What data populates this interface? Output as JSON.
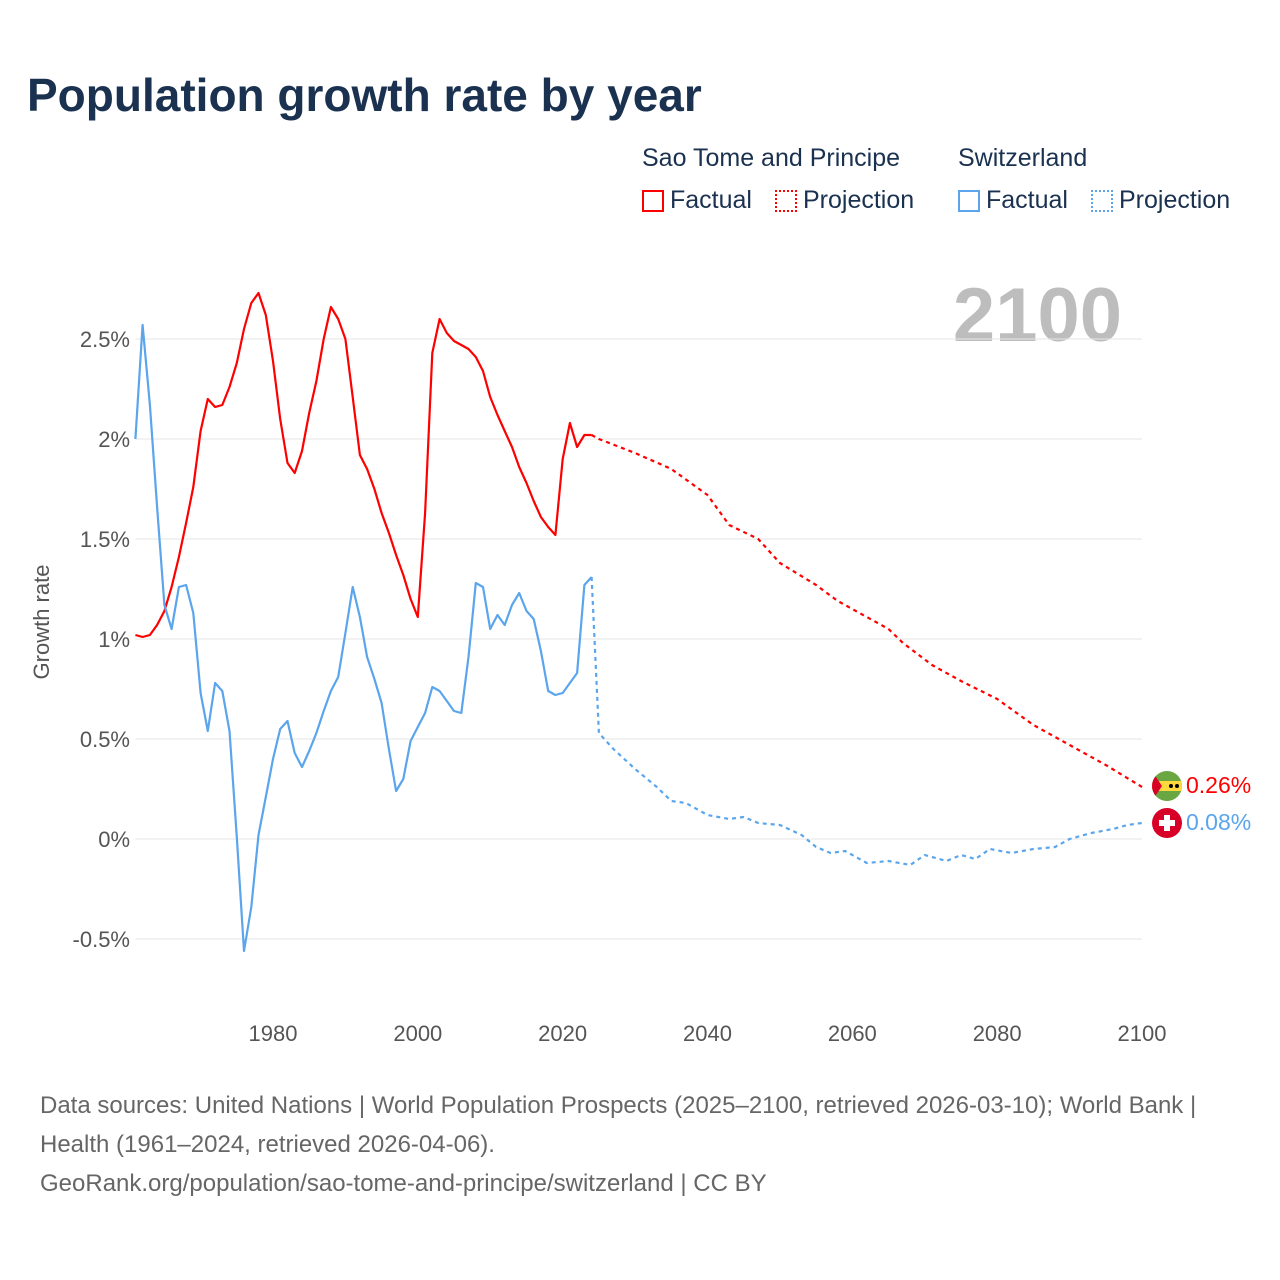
{
  "title": "Population growth rate by year",
  "legend": {
    "groups": [
      {
        "name": "Sao Tome and Principe",
        "factual": "Factual",
        "projection": "Projection",
        "color": "#ff0000"
      },
      {
        "name": "Switzerland",
        "factual": "Factual",
        "projection": "Projection",
        "color": "#5aa5ec"
      }
    ]
  },
  "current_year": "2100",
  "end_labels": {
    "stp": "0.26%",
    "che": "0.08%"
  },
  "footer": {
    "sources": "Data sources: United Nations | World Population Prospects (2025–2100, retrieved 2026-03-10); World Bank | Health (1961–2024, retrieved 2026-04-06).",
    "link": "GeoRank.org/population/sao-tome-and-principe/switzerland | CC BY"
  },
  "chart_data": {
    "type": "line",
    "title": "Population growth rate by year",
    "xlabel": "",
    "ylabel": "Growth rate",
    "xlim": [
      1961,
      2100
    ],
    "ylim": [
      -0.5,
      2.5
    ],
    "x_ticks": [
      1980,
      2000,
      2020,
      2040,
      2060,
      2080,
      2100
    ],
    "y_ticks": [
      {
        "v": -0.5,
        "label": "-0.5%"
      },
      {
        "v": 0,
        "label": "0%"
      },
      {
        "v": 0.5,
        "label": "0.5%"
      },
      {
        "v": 1,
        "label": "1%"
      },
      {
        "v": 1.5,
        "label": "1.5%"
      },
      {
        "v": 2,
        "label": "2%"
      },
      {
        "v": 2.5,
        "label": "2.5%"
      }
    ],
    "grid": true,
    "series": [
      {
        "name": "Sao Tome and Principe",
        "kind": "Factual",
        "color": "#ff0000",
        "start": 1961,
        "values": [
          1.02,
          1.01,
          1.02,
          1.07,
          1.14,
          1.26,
          1.41,
          1.58,
          1.76,
          2.04,
          2.2,
          2.16,
          2.17,
          2.26,
          2.38,
          2.55,
          2.68,
          2.73,
          2.62,
          2.39,
          2.1,
          1.88,
          1.83,
          1.94,
          2.13,
          2.29,
          2.5,
          2.66,
          2.6,
          2.5,
          2.21,
          1.92,
          1.85,
          1.75,
          1.63,
          1.53,
          1.42,
          1.32,
          1.2,
          1.11,
          1.63,
          2.43,
          2.6,
          2.53,
          2.49,
          2.47,
          2.45,
          2.41,
          2.34,
          2.21,
          2.12,
          2.04,
          1.96,
          1.86,
          1.78,
          1.69,
          1.61,
          1.56,
          1.52,
          1.9,
          2.08,
          1.96,
          2.02,
          2.02
        ]
      },
      {
        "name": "Sao Tome and Principe",
        "kind": "Projection",
        "color": "#ff0000",
        "points": [
          [
            2024,
            2.02
          ],
          [
            2025,
            2.0
          ],
          [
            2030,
            1.93
          ],
          [
            2035,
            1.85
          ],
          [
            2040,
            1.72
          ],
          [
            2043,
            1.57
          ],
          [
            2047,
            1.5
          ],
          [
            2050,
            1.38
          ],
          [
            2055,
            1.27
          ],
          [
            2058,
            1.19
          ],
          [
            2065,
            1.05
          ],
          [
            2067,
            0.98
          ],
          [
            2071,
            0.87
          ],
          [
            2075,
            0.79
          ],
          [
            2080,
            0.7
          ],
          [
            2085,
            0.57
          ],
          [
            2090,
            0.47
          ],
          [
            2095,
            0.37
          ],
          [
            2100,
            0.26
          ]
        ]
      },
      {
        "name": "Switzerland",
        "kind": "Factual",
        "color": "#5aa5ec",
        "start": 1961,
        "values": [
          2.0,
          2.57,
          2.17,
          1.66,
          1.17,
          1.05,
          1.26,
          1.27,
          1.13,
          0.73,
          0.54,
          0.78,
          0.74,
          0.54,
          0.01,
          -0.56,
          -0.34,
          0.02,
          0.21,
          0.4,
          0.55,
          0.59,
          0.43,
          0.36,
          0.44,
          0.53,
          0.64,
          0.74,
          0.81,
          1.03,
          1.26,
          1.11,
          0.91,
          0.8,
          0.68,
          0.45,
          0.24,
          0.3,
          0.49,
          0.56,
          0.63,
          0.76,
          0.74,
          0.69,
          0.64,
          0.63,
          0.91,
          1.28,
          1.26,
          1.05,
          1.12,
          1.07,
          1.17,
          1.23,
          1.14,
          1.1,
          0.94,
          0.74,
          0.72,
          0.73,
          0.78,
          0.83,
          1.27,
          1.31
        ]
      },
      {
        "name": "Switzerland",
        "kind": "Projection",
        "color": "#5aa5ec",
        "points": [
          [
            2024,
            1.31
          ],
          [
            2025,
            0.53
          ],
          [
            2027,
            0.45
          ],
          [
            2030,
            0.35
          ],
          [
            2033,
            0.26
          ],
          [
            2035,
            0.19
          ],
          [
            2037,
            0.18
          ],
          [
            2040,
            0.12
          ],
          [
            2043,
            0.1
          ],
          [
            2045,
            0.11
          ],
          [
            2047,
            0.08
          ],
          [
            2050,
            0.07
          ],
          [
            2053,
            0.02
          ],
          [
            2055,
            -0.04
          ],
          [
            2057,
            -0.07
          ],
          [
            2059,
            -0.06
          ],
          [
            2062,
            -0.12
          ],
          [
            2065,
            -0.11
          ],
          [
            2068,
            -0.13
          ],
          [
            2070,
            -0.08
          ],
          [
            2073,
            -0.11
          ],
          [
            2075,
            -0.08
          ],
          [
            2077,
            -0.1
          ],
          [
            2079,
            -0.05
          ],
          [
            2082,
            -0.07
          ],
          [
            2085,
            -0.05
          ],
          [
            2088,
            -0.04
          ],
          [
            2090,
            0.0
          ],
          [
            2093,
            0.03
          ],
          [
            2096,
            0.05
          ],
          [
            2098,
            0.07
          ],
          [
            2100,
            0.08
          ]
        ]
      }
    ]
  }
}
